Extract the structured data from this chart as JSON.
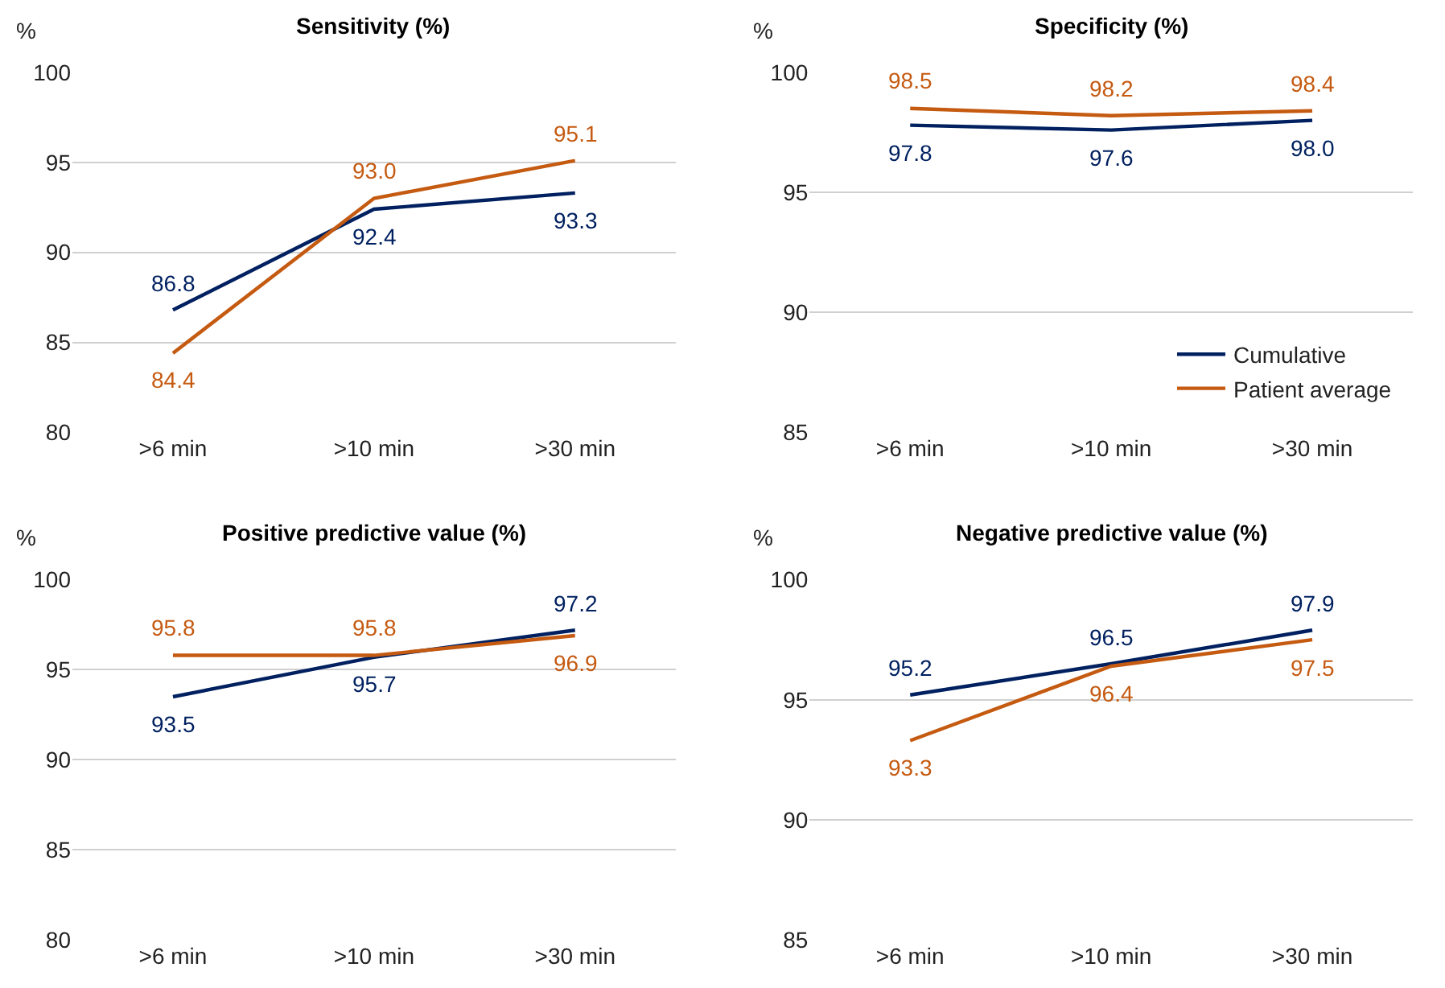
{
  "chart_data": [
    {
      "type": "line",
      "title": "Sensitivity (%)",
      "ylabel": "%",
      "categories": [
        ">6 min",
        ">10 min",
        ">30 min"
      ],
      "ylim": [
        80,
        100
      ],
      "yticks": [
        80,
        85,
        90,
        95,
        100
      ],
      "grid": "y",
      "legend": false,
      "series": [
        {
          "color": "#002060",
          "values": [
            86.8,
            92.4,
            93.3
          ],
          "value_labels": [
            "86.8",
            "92.4",
            "93.3"
          ]
        },
        {
          "color": "#c55a11",
          "values": [
            84.4,
            93.0,
            95.1
          ],
          "value_labels": [
            "84.4",
            "93.0",
            "95.1"
          ]
        }
      ]
    },
    {
      "type": "line",
      "title": "Specificity (%)",
      "ylabel": "%",
      "categories": [
        ">6 min",
        ">10 min",
        ">30 min"
      ],
      "ylim": [
        85,
        100
      ],
      "yticks": [
        85,
        90,
        95,
        100
      ],
      "grid": "y",
      "legend": "bottom right",
      "series": [
        {
          "name": "Cumulative",
          "color": "#002060",
          "values": [
            97.8,
            97.6,
            98.0
          ],
          "value_labels": [
            "97.8",
            "97.6",
            "98.0"
          ]
        },
        {
          "name": "Patient average",
          "color": "#c55a11",
          "values": [
            98.5,
            98.2,
            98.4
          ],
          "value_labels": [
            "98.5",
            "98.2",
            "98.4"
          ]
        }
      ]
    },
    {
      "type": "line",
      "title": "Positive predictive value (%)",
      "ylabel": "%",
      "categories": [
        ">6 min",
        ">10 min",
        ">30 min"
      ],
      "ylim": [
        80,
        100
      ],
      "yticks": [
        80,
        85,
        90,
        95,
        100
      ],
      "grid": "y",
      "legend": false,
      "series": [
        {
          "color": "#002060",
          "values": [
            93.5,
            95.7,
            97.2
          ],
          "value_labels": [
            "93.5",
            "95.7",
            "97.2"
          ]
        },
        {
          "color": "#c55a11",
          "values": [
            95.8,
            95.8,
            96.9
          ],
          "value_labels": [
            "95.8",
            "95.8",
            "96.9"
          ]
        }
      ]
    },
    {
      "type": "line",
      "title": "Negative predictive value (%)",
      "ylabel": "%",
      "categories": [
        ">6 min",
        ">10 min",
        ">30 min"
      ],
      "ylim": [
        85,
        100
      ],
      "yticks": [
        85,
        90,
        95,
        100
      ],
      "grid": "y",
      "legend": false,
      "series": [
        {
          "color": "#002060",
          "values": [
            95.2,
            96.5,
            97.9
          ],
          "value_labels": [
            "95.2",
            "96.5",
            "97.9"
          ]
        },
        {
          "color": "#c55a11",
          "values": [
            93.3,
            96.4,
            97.5
          ],
          "value_labels": [
            "93.3",
            "96.4",
            "97.5"
          ]
        }
      ]
    }
  ]
}
